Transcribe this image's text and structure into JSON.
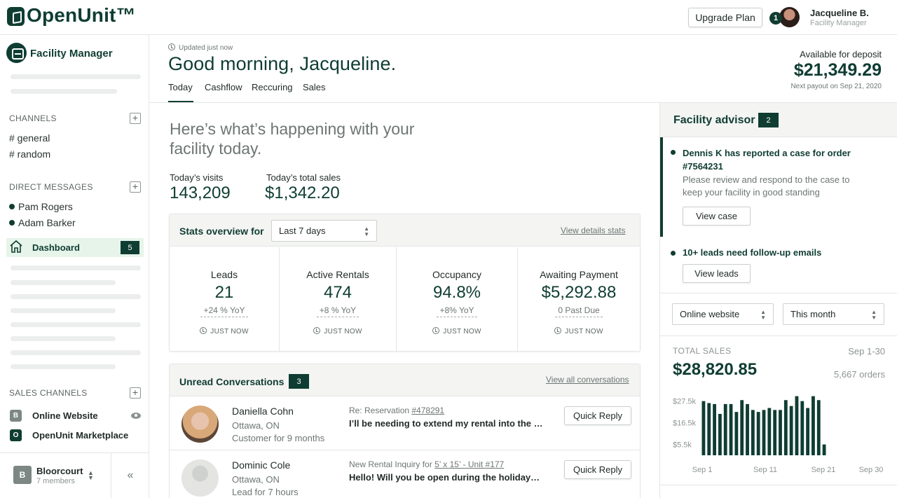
{
  "app": {
    "logo_text": "OpenUnit™",
    "upgrade_label": "Upgrade Plan",
    "notification_count": "1",
    "user": {
      "name": "Jacqueline B.",
      "role": "Facility Manager"
    }
  },
  "sidebar": {
    "brand": "Facility Manager",
    "channels_title": "CHANNELS",
    "channels": [
      "# general",
      "# random"
    ],
    "dm_title": "DIRECT MESSAGES",
    "direct_messages": [
      "Pam Rogers",
      "Adam Barker"
    ],
    "dashboard": {
      "label": "Dashboard",
      "count": "5"
    },
    "sales_channels_title": "SALES CHANNELS",
    "sales_channels": [
      {
        "icon": "B",
        "label": "Online Website",
        "color": "#7d8783"
      },
      {
        "icon": "O",
        "label": "OpenUnit Marketplace",
        "color": "#0f3d32"
      }
    ],
    "org": {
      "icon": "B",
      "name": "Bloorcourt",
      "members": "7 members"
    },
    "collapse_icon": "double-chevron-left-icon"
  },
  "header": {
    "updated": "Updated just now",
    "greeting": "Good morning, Jacqueline.",
    "tabs": [
      "Today",
      "Cashflow",
      "Reccuring",
      "Sales"
    ],
    "active_tab": "Today",
    "deposit_label": "Available for deposit",
    "deposit_amount": "$21,349.29",
    "next_payout": "Next payout on Sep 21, 2020"
  },
  "overview": {
    "intro": "Here’s what’s happening with your facility today.",
    "visits_label": "Today’s visits",
    "visits_value": "143,209",
    "sales_label": "Today’s total sales",
    "sales_value": "$1,342.20"
  },
  "stats": {
    "title": "Stats overview for",
    "range": "Last 7 days",
    "link": "View details stats",
    "items": [
      {
        "label": "Leads",
        "value": "21",
        "change": "+24 % YoY",
        "time": "JUST NOW"
      },
      {
        "label": "Active Rentals",
        "value": "474",
        "change": "+8 % YoY",
        "time": "JUST NOW"
      },
      {
        "label": "Occupancy",
        "value": "94.8%",
        "change": "+8% YoY",
        "time": "JUST NOW"
      },
      {
        "label": "Awaiting Payment",
        "value": "$5,292.88",
        "change": "0 Past Due",
        "time": "JUST NOW"
      }
    ]
  },
  "conversations": {
    "title": "Unread Conversations",
    "count": "3",
    "link": "View all conversations",
    "reply_label": "Quick Reply",
    "items": [
      {
        "name": "Daniella Cohn",
        "location": "Ottawa, ON",
        "since": "Customer for 9 months",
        "subject_prefix": "Re: Reservation ",
        "subject_link": "#478291",
        "message": "I’ll be needing to extend my rental into the m..."
      },
      {
        "name": "Dominic Cole",
        "location": "Ottawa, ON",
        "since": "Lead for 7 hours",
        "subject_prefix": "New Rental Inquiry for ",
        "subject_link": "5’ x 15’ - Unit #177",
        "message": "Hello! Will you be open during the holidays? I..."
      }
    ]
  },
  "advisor": {
    "title": "Facility advisor",
    "count": "2",
    "items": [
      {
        "title": "Dennis K has reported a case for order #7564231",
        "desc": "Please review and respond to the case to keep your facility in good standing",
        "button": "View case"
      },
      {
        "title": "10+ leads need follow-up emails",
        "button": "View leads"
      }
    ],
    "channel_select": "Online website",
    "period_select": "This month",
    "total_sales_label": "TOTAL SALES",
    "total_sales_range": "Sep 1-30",
    "total_sales_value": "$28,820.85",
    "total_orders": "5,667 orders"
  },
  "chart_data": {
    "type": "bar",
    "x_ticks": [
      "Sep 1",
      "Sep 11",
      "Sep 21",
      "Sep 30"
    ],
    "y_ticks": [
      "$27.5k",
      "$16.5k",
      "$5.5k"
    ],
    "ylim": [
      0,
      32000
    ],
    "values": [
      27500,
      26500,
      26000,
      21000,
      26000,
      26000,
      22000,
      28000,
      26000,
      23000,
      22000,
      23000,
      24000,
      23000,
      23000,
      28000,
      25000,
      30000,
      27500,
      24000,
      30000,
      28000,
      5500
    ],
    "bar_color": "#0f3d32"
  }
}
